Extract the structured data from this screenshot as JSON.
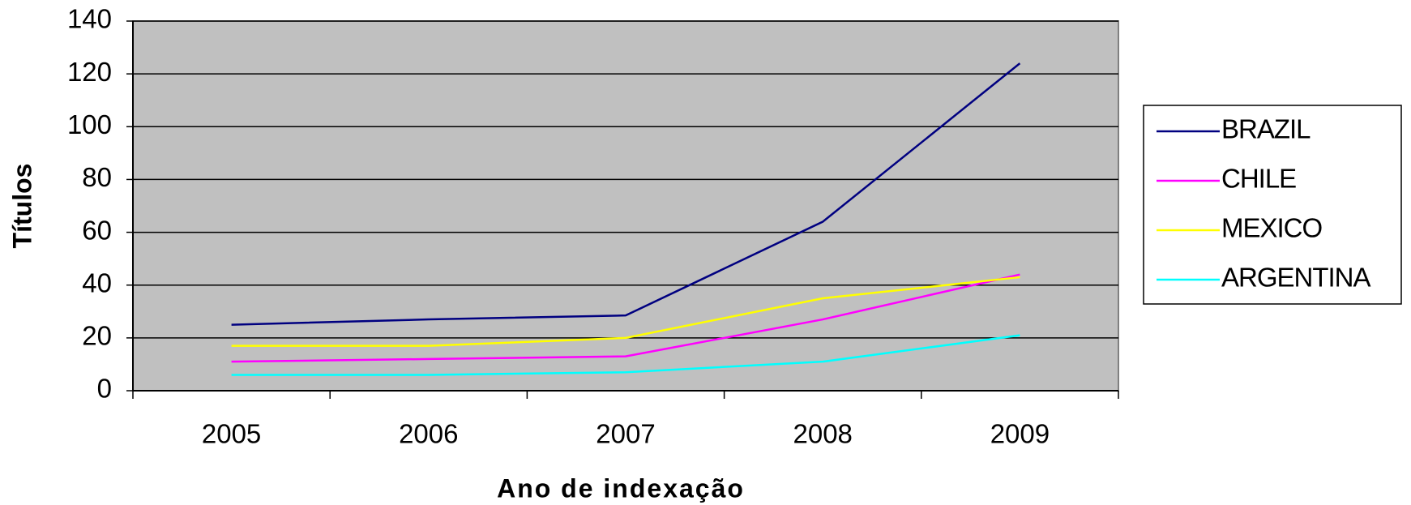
{
  "chart_data": {
    "type": "line",
    "xlabel": "Ano de indexação",
    "ylabel": "Títulos",
    "categories": [
      "2005",
      "2006",
      "2007",
      "2008",
      "2009"
    ],
    "series": [
      {
        "name": "BRAZIL",
        "color": "#000080",
        "values": [
          25,
          27,
          28.5,
          64,
          124
        ]
      },
      {
        "name": "CHILE",
        "color": "#ff00ff",
        "values": [
          11,
          12,
          13,
          27,
          44
        ]
      },
      {
        "name": "MEXICO",
        "color": "#ffff00",
        "values": [
          17,
          17,
          20,
          35,
          43
        ]
      },
      {
        "name": "ARGENTINA",
        "color": "#00ffff",
        "values": [
          6,
          6,
          7,
          11,
          21
        ]
      }
    ],
    "ylim": [
      0,
      140
    ],
    "yticks": [
      0,
      20,
      40,
      60,
      80,
      100,
      120,
      140
    ],
    "grid": true,
    "plot_background": "#c0c0c0",
    "legend": "right"
  }
}
